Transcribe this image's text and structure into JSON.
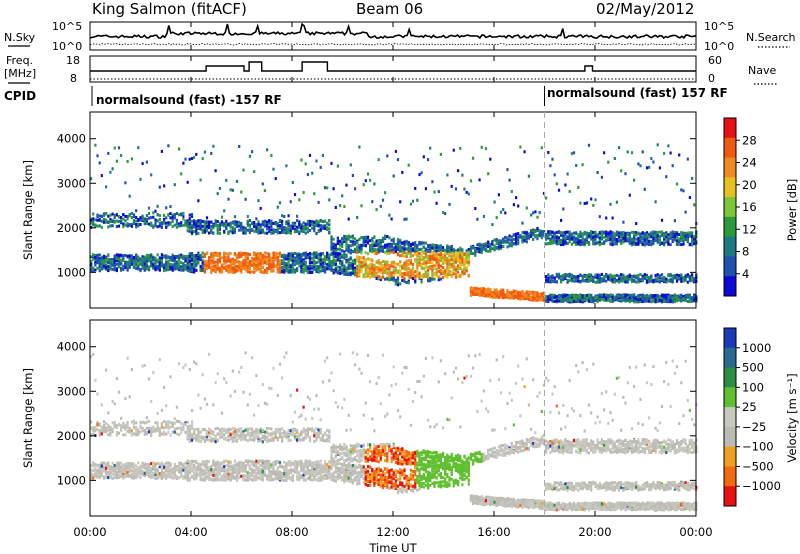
{
  "header": {
    "station": "King Salmon (fitACF)",
    "beam": "Beam 06",
    "date": "02/May/2012"
  },
  "top_panels": {
    "nsky_label": "N.Sky",
    "nsearch_label": "N.Search",
    "noise_ticks": [
      "10^5",
      "10^0"
    ],
    "freq_label_1": "Freq.",
    "freq_label_2": "[MHz]",
    "freq_ticks": [
      "18",
      "8"
    ],
    "nave_label": "Nave",
    "nave_ticks": [
      "60",
      "0"
    ],
    "cpid_label": "CPID",
    "cpid_segments": [
      {
        "text": "normalsound (fast) -157 RF",
        "start_hour": 0
      },
      {
        "text": "normalsound (fast) 157 RF",
        "start_hour": 18
      }
    ]
  },
  "colors": {
    "power_scale": [
      "#0a0ad8",
      "#2050b0",
      "#1e7880",
      "#2a9a3a",
      "#7ac83a",
      "#e8c020",
      "#f08a20",
      "#f05a10",
      "#e81010"
    ],
    "velocity_scale": [
      "#1a3ab8",
      "#2a6a90",
      "#2a9040",
      "#60c030",
      "#c8c8c0",
      "#bcbcb4",
      "#f0a020",
      "#f06a10",
      "#e81010"
    ]
  },
  "chart_data": [
    {
      "type": "heatmap",
      "panel": "power",
      "ylabel": "Slant Range [km]",
      "yticks": [
        "1000",
        "2000",
        "3000",
        "4000"
      ],
      "ylim": [
        200,
        4600
      ],
      "xlim_hours": [
        0,
        24
      ],
      "colorbar_label": "Power [dB]",
      "colorbar_ticks": [
        "4",
        "8",
        "12",
        "16",
        "20",
        "24",
        "28"
      ],
      "colorbar_range": [
        0,
        32
      ]
    },
    {
      "type": "heatmap",
      "panel": "velocity",
      "ylabel": "Slant Range [km]",
      "yticks": [
        "1000",
        "2000",
        "3000",
        "4000"
      ],
      "ylim": [
        200,
        4600
      ],
      "xlim_hours": [
        0,
        24
      ],
      "colorbar_label": "Velocity [m s⁻¹]",
      "colorbar_ticks": [
        "1000",
        "500",
        "100",
        "25",
        "−25",
        "−100",
        "−500",
        "−1000"
      ]
    }
  ],
  "xaxis": {
    "ticks": [
      "00:00",
      "04:00",
      "08:00",
      "12:00",
      "16:00",
      "20:00",
      "00:00"
    ],
    "label": "Time UT"
  }
}
